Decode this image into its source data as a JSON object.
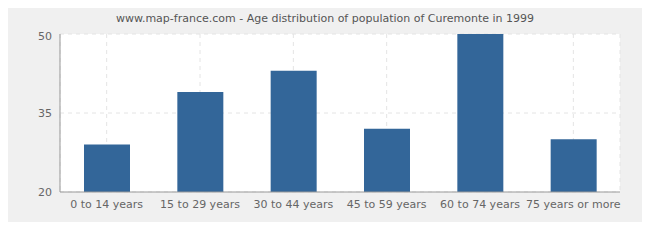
{
  "chart_data": {
    "type": "bar",
    "title": "www.map-france.com - Age distribution of population of Curemonte in 1999",
    "categories": [
      "0 to 14 years",
      "15 to 29 years",
      "30 to 44 years",
      "45 to 59 years",
      "60 to 74 years",
      "75 years or more"
    ],
    "values": [
      29,
      39,
      43,
      32,
      50,
      30
    ],
    "color": "#336699",
    "ylim": [
      20,
      50
    ],
    "yticks": [
      20,
      35,
      50
    ],
    "grid": true
  }
}
